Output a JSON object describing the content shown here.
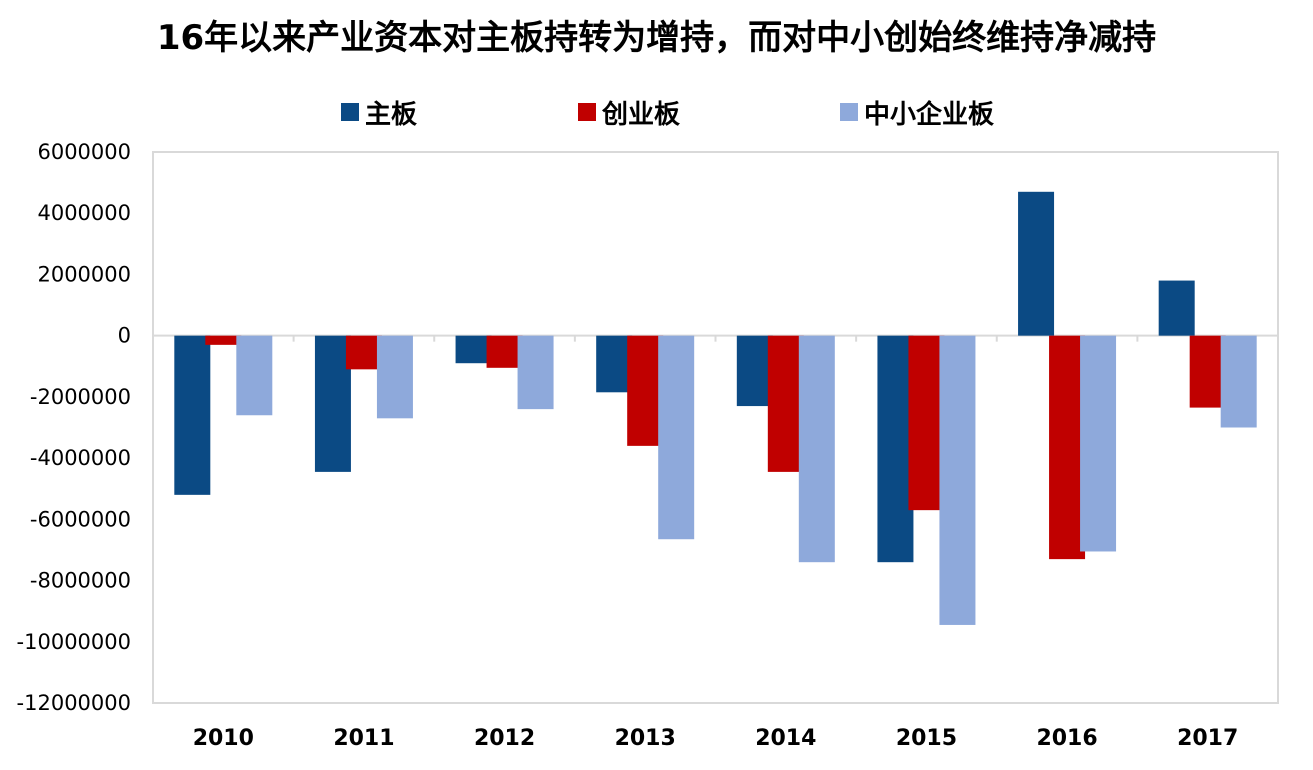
{
  "chart_data": {
    "type": "bar",
    "title": "16年以来产业资本对主板持转为增持，而对中小创始终维持净减持",
    "categories": [
      "2010",
      "2011",
      "2012",
      "2013",
      "2014",
      "2015",
      "2016",
      "2017"
    ],
    "series": [
      {
        "name": "主板",
        "color": "#0B4A84",
        "values": [
          -5200000,
          -4450000,
          -900000,
          -1850000,
          -2300000,
          -7400000,
          4700000,
          1800000
        ]
      },
      {
        "name": "创业板",
        "color": "#C00000",
        "values": [
          -300000,
          -1100000,
          -1050000,
          -3600000,
          -4450000,
          -5700000,
          -7300000,
          -2350000
        ]
      },
      {
        "name": "中小企业板",
        "color": "#8EA9DB",
        "values": [
          -2600000,
          -2700000,
          -2400000,
          -6650000,
          -7400000,
          -9450000,
          -7050000,
          -3000000
        ]
      }
    ],
    "ylim": [
      -12000000,
      6000000
    ],
    "yticks": [
      "6000000",
      "4000000",
      "2000000",
      "0",
      "-2000000",
      "-4000000",
      "-6000000",
      "-8000000",
      "-10000000",
      "-12000000"
    ],
    "ytick_values": [
      6000000,
      4000000,
      2000000,
      0,
      -2000000,
      -4000000,
      -6000000,
      -8000000,
      -10000000,
      -12000000
    ],
    "xlabel": "",
    "ylabel": "",
    "grid": false,
    "legend_position": "top",
    "axis_color": "#D9D9D9"
  }
}
